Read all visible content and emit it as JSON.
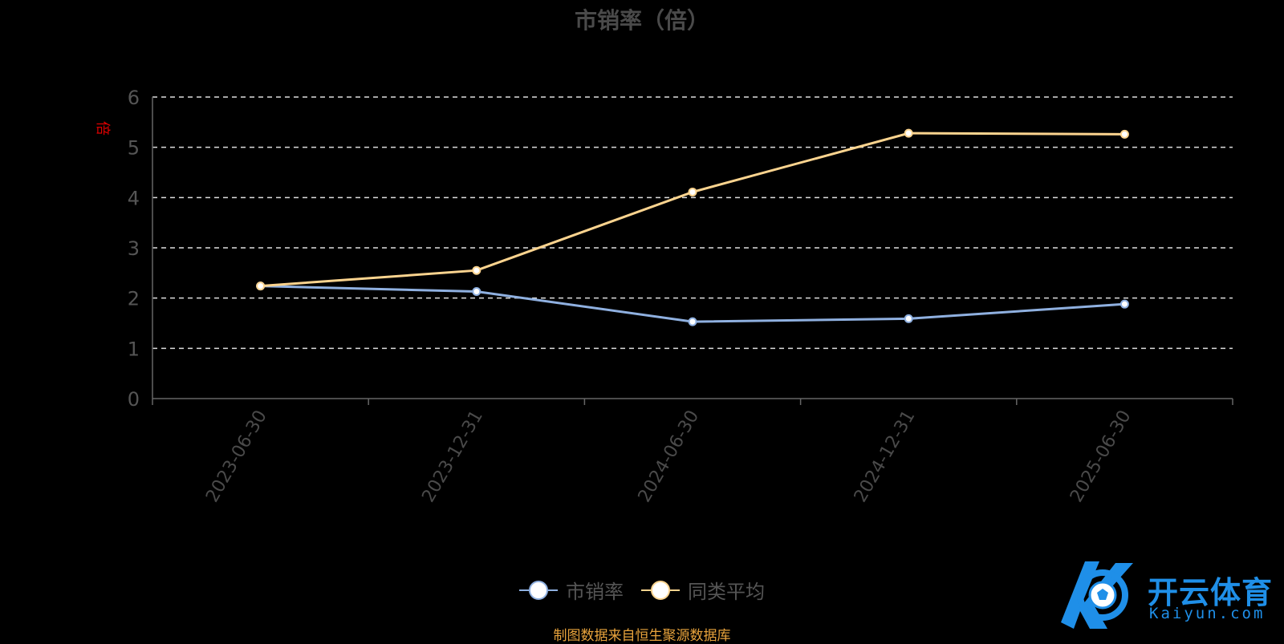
{
  "title": "市销率（倍）",
  "source": "制图数据来自恒生聚源数据库",
  "watermark": {
    "brand": "开云体育",
    "sub": "Kaiyun.com"
  },
  "chart_data": {
    "type": "line",
    "title": "市销率（倍）",
    "ylabel": "倍",
    "xlabel": "",
    "categories": [
      "2023-06-30",
      "2023-12-31",
      "2024-06-30",
      "2024-12-31",
      "2025-06-30"
    ],
    "ylim": [
      0,
      6
    ],
    "yticks": [
      "0",
      "1",
      "2",
      "3",
      "4",
      "5",
      "6"
    ],
    "grid": true,
    "legend_position": "bottom",
    "series": [
      {
        "name": "市销率",
        "values": [
          2.24,
          2.13,
          1.53,
          1.59,
          1.88
        ],
        "color": "#8fb0e0"
      },
      {
        "name": "同类平均",
        "values": [
          2.24,
          2.55,
          4.11,
          5.28,
          5.26
        ],
        "color": "#fcd48f"
      }
    ]
  }
}
